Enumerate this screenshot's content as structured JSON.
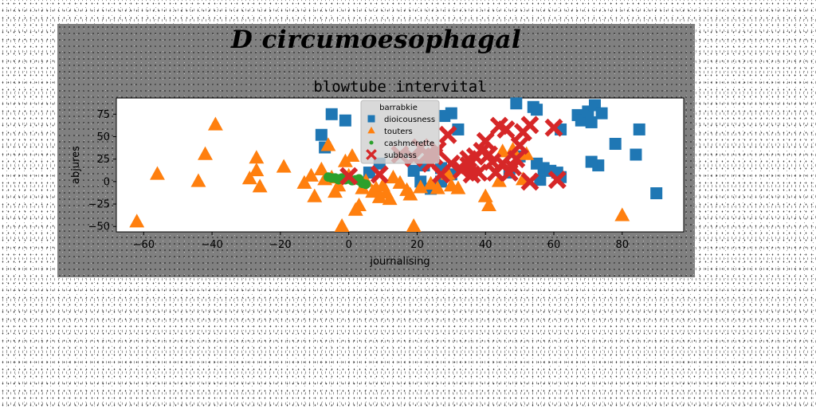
{
  "suptitle": "D circumoesophagal",
  "chart_data": {
    "type": "scatter",
    "title": "blowtube intervital",
    "xlabel": "journalising",
    "ylabel": "abjures",
    "xlim": [
      -68,
      98
    ],
    "ylim": [
      -56,
      93
    ],
    "xticks": [
      -60,
      -40,
      -20,
      0,
      20,
      40,
      60,
      80
    ],
    "yticks": [
      -50,
      -25,
      0,
      25,
      50,
      75
    ],
    "grid": false,
    "legend": {
      "title": "barrabkie",
      "placement": "upper-center"
    },
    "series": [
      {
        "name": "dioicousness",
        "marker": "square",
        "color": "#1f77b4",
        "points": [
          [
            -5,
            75
          ],
          [
            -1,
            68
          ],
          [
            -8,
            52
          ],
          [
            -7,
            38
          ],
          [
            6,
            10
          ],
          [
            9,
            20
          ],
          [
            19,
            12
          ],
          [
            21,
            0
          ],
          [
            22,
            18
          ],
          [
            24,
            -8
          ],
          [
            27,
            15
          ],
          [
            28,
            73
          ],
          [
            30,
            76
          ],
          [
            32,
            58
          ],
          [
            49,
            87
          ],
          [
            54,
            83
          ],
          [
            55,
            80
          ],
          [
            57,
            15
          ],
          [
            55,
            20
          ],
          [
            59,
            12
          ],
          [
            62,
            58
          ],
          [
            61,
            10
          ],
          [
            67,
            74
          ],
          [
            68,
            68
          ],
          [
            70,
            78
          ],
          [
            71,
            66
          ],
          [
            72,
            85
          ],
          [
            73,
            18
          ],
          [
            71,
            22
          ],
          [
            74,
            76
          ],
          [
            78,
            42
          ],
          [
            84,
            30
          ],
          [
            85,
            58
          ],
          [
            90,
            -13
          ],
          [
            62,
            5
          ],
          [
            56,
            2
          ],
          [
            50,
            28
          ],
          [
            47,
            10
          ],
          [
            30,
            8
          ],
          [
            27,
            0
          ]
        ]
      },
      {
        "name": "touters",
        "marker": "triangle",
        "color": "#ff7f0e",
        "points": [
          [
            -62,
            -45
          ],
          [
            -56,
            8
          ],
          [
            -44,
            0
          ],
          [
            -42,
            30
          ],
          [
            -39,
            63
          ],
          [
            -29,
            3
          ],
          [
            -27,
            26
          ],
          [
            -27,
            12
          ],
          [
            -26,
            -6
          ],
          [
            -19,
            16
          ],
          [
            -13,
            -2
          ],
          [
            -11,
            6
          ],
          [
            -10,
            -17
          ],
          [
            -8,
            13
          ],
          [
            -7,
            2
          ],
          [
            -6,
            40
          ],
          [
            -5,
            4
          ],
          [
            -4,
            -12
          ],
          [
            -3,
            -5
          ],
          [
            -2,
            -50
          ],
          [
            -1,
            22
          ],
          [
            0,
            6
          ],
          [
            1,
            28
          ],
          [
            2,
            -32
          ],
          [
            3,
            -27
          ],
          [
            4,
            -8
          ],
          [
            5,
            0
          ],
          [
            7,
            -12
          ],
          [
            8,
            -8
          ],
          [
            9,
            -18
          ],
          [
            10,
            -5
          ],
          [
            11,
            -13
          ],
          [
            12,
            -20
          ],
          [
            13,
            4
          ],
          [
            15,
            -2
          ],
          [
            17,
            -10
          ],
          [
            18,
            -15
          ],
          [
            19,
            -50
          ],
          [
            21,
            -7
          ],
          [
            24,
            -3
          ],
          [
            26,
            -8
          ],
          [
            29,
            8
          ],
          [
            30,
            -5
          ],
          [
            32,
            -8
          ],
          [
            40,
            -17
          ],
          [
            41,
            -27
          ],
          [
            44,
            0
          ],
          [
            45,
            33
          ],
          [
            48,
            35
          ],
          [
            51,
            2
          ],
          [
            52,
            30
          ],
          [
            80,
            -38
          ]
        ]
      },
      {
        "name": "cashmerette",
        "marker": "circle",
        "color": "#2ca02c",
        "points": [
          [
            -6,
            5
          ],
          [
            -5,
            4
          ],
          [
            -4,
            4
          ],
          [
            -3,
            3
          ],
          [
            -2,
            4
          ],
          [
            -1,
            2
          ],
          [
            0,
            3
          ],
          [
            1,
            1
          ],
          [
            2,
            2
          ],
          [
            3,
            1
          ],
          [
            4,
            -2
          ],
          [
            5,
            -3
          ],
          [
            -3,
            2
          ],
          [
            -1,
            4
          ],
          [
            3,
            3
          ]
        ]
      },
      {
        "name": "subbass",
        "marker": "x",
        "color": "#d62728",
        "points": [
          [
            0,
            6
          ],
          [
            9,
            8
          ],
          [
            15,
            30
          ],
          [
            19,
            26
          ],
          [
            21,
            38
          ],
          [
            23,
            30
          ],
          [
            24,
            20
          ],
          [
            25,
            28
          ],
          [
            26,
            35
          ],
          [
            27,
            8
          ],
          [
            29,
            52
          ],
          [
            33,
            13
          ],
          [
            35,
            25
          ],
          [
            36,
            8
          ],
          [
            37,
            28
          ],
          [
            38,
            10
          ],
          [
            39,
            34
          ],
          [
            40,
            45
          ],
          [
            41,
            30
          ],
          [
            42,
            22
          ],
          [
            43,
            10
          ],
          [
            44,
            62
          ],
          [
            45,
            20
          ],
          [
            46,
            58
          ],
          [
            47,
            10
          ],
          [
            48,
            16
          ],
          [
            49,
            25
          ],
          [
            50,
            40
          ],
          [
            51,
            55
          ],
          [
            53,
            63
          ],
          [
            53,
            0
          ],
          [
            60,
            60
          ],
          [
            61,
            2
          ],
          [
            35,
            18
          ],
          [
            30,
            20
          ]
        ]
      }
    ]
  }
}
